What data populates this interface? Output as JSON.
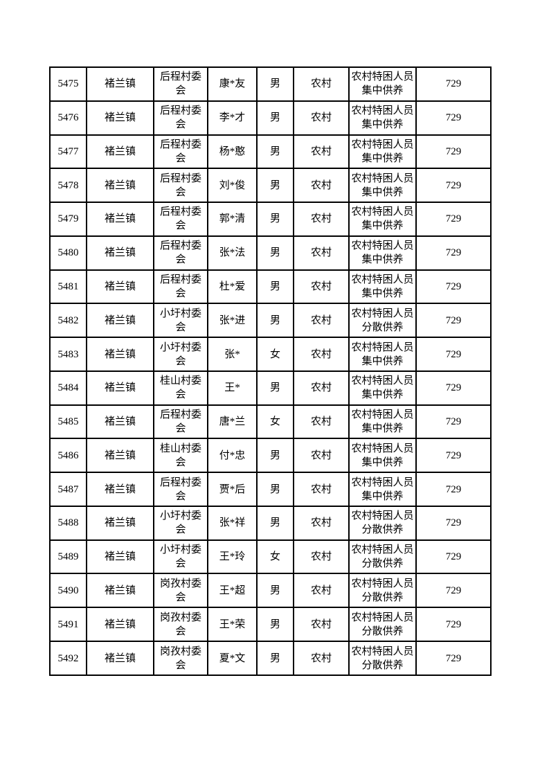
{
  "page": {
    "background_color": "#ffffff",
    "text_color": "#000000",
    "table_border_color": "#000000"
  },
  "table": {
    "columns": [
      "index",
      "town",
      "village",
      "name",
      "gender",
      "residence",
      "support_type",
      "amount"
    ],
    "rows": [
      {
        "index": "5475",
        "town": "褚兰镇",
        "village": "后程村委\n会",
        "name": "康*友",
        "gender": "男",
        "residence": "农村",
        "support_type": "农村特困人员\n集中供养",
        "amount": "729"
      },
      {
        "index": "5476",
        "town": "褚兰镇",
        "village": "后程村委\n会",
        "name": "李*才",
        "gender": "男",
        "residence": "农村",
        "support_type": "农村特困人员\n集中供养",
        "amount": "729"
      },
      {
        "index": "5477",
        "town": "褚兰镇",
        "village": "后程村委\n会",
        "name": "杨*憨",
        "gender": "男",
        "residence": "农村",
        "support_type": "农村特困人员\n集中供养",
        "amount": "729"
      },
      {
        "index": "5478",
        "town": "褚兰镇",
        "village": "后程村委\n会",
        "name": "刘*俊",
        "gender": "男",
        "residence": "农村",
        "support_type": "农村特困人员\n集中供养",
        "amount": "729"
      },
      {
        "index": "5479",
        "town": "褚兰镇",
        "village": "后程村委\n会",
        "name": "郭*清",
        "gender": "男",
        "residence": "农村",
        "support_type": "农村特困人员\n集中供养",
        "amount": "729"
      },
      {
        "index": "5480",
        "town": "褚兰镇",
        "village": "后程村委\n会",
        "name": "张*法",
        "gender": "男",
        "residence": "农村",
        "support_type": "农村特困人员\n集中供养",
        "amount": "729"
      },
      {
        "index": "5481",
        "town": "褚兰镇",
        "village": "后程村委\n会",
        "name": "杜*爱",
        "gender": "男",
        "residence": "农村",
        "support_type": "农村特困人员\n集中供养",
        "amount": "729"
      },
      {
        "index": "5482",
        "town": "褚兰镇",
        "village": "小圩村委\n会",
        "name": "张*进",
        "gender": "男",
        "residence": "农村",
        "support_type": "农村特困人员\n分散供养",
        "amount": "729"
      },
      {
        "index": "5483",
        "town": "褚兰镇",
        "village": "小圩村委\n会",
        "name": "张*",
        "gender": "女",
        "residence": "农村",
        "support_type": "农村特困人员\n集中供养",
        "amount": "729"
      },
      {
        "index": "5484",
        "town": "褚兰镇",
        "village": "桂山村委\n会",
        "name": "王*",
        "gender": "男",
        "residence": "农村",
        "support_type": "农村特困人员\n集中供养",
        "amount": "729"
      },
      {
        "index": "5485",
        "town": "褚兰镇",
        "village": "后程村委\n会",
        "name": "唐*兰",
        "gender": "女",
        "residence": "农村",
        "support_type": "农村特困人员\n集中供养",
        "amount": "729"
      },
      {
        "index": "5486",
        "town": "褚兰镇",
        "village": "桂山村委\n会",
        "name": "付*忠",
        "gender": "男",
        "residence": "农村",
        "support_type": "农村特困人员\n集中供养",
        "amount": "729"
      },
      {
        "index": "5487",
        "town": "褚兰镇",
        "village": "后程村委\n会",
        "name": "贾*后",
        "gender": "男",
        "residence": "农村",
        "support_type": "农村特困人员\n集中供养",
        "amount": "729"
      },
      {
        "index": "5488",
        "town": "褚兰镇",
        "village": "小圩村委\n会",
        "name": "张*祥",
        "gender": "男",
        "residence": "农村",
        "support_type": "农村特困人员\n分散供养",
        "amount": "729"
      },
      {
        "index": "5489",
        "town": "褚兰镇",
        "village": "小圩村委\n会",
        "name": "王*玲",
        "gender": "女",
        "residence": "农村",
        "support_type": "农村特困人员\n分散供养",
        "amount": "729"
      },
      {
        "index": "5490",
        "town": "褚兰镇",
        "village": "岗孜村委\n会",
        "name": "王*超",
        "gender": "男",
        "residence": "农村",
        "support_type": "农村特困人员\n分散供养",
        "amount": "729"
      },
      {
        "index": "5491",
        "town": "褚兰镇",
        "village": "岗孜村委\n会",
        "name": "王*荣",
        "gender": "男",
        "residence": "农村",
        "support_type": "农村特困人员\n分散供养",
        "amount": "729"
      },
      {
        "index": "5492",
        "town": "褚兰镇",
        "village": "岗孜村委\n会",
        "name": "夏*文",
        "gender": "男",
        "residence": "农村",
        "support_type": "农村特困人员\n分散供养",
        "amount": "729"
      }
    ]
  }
}
